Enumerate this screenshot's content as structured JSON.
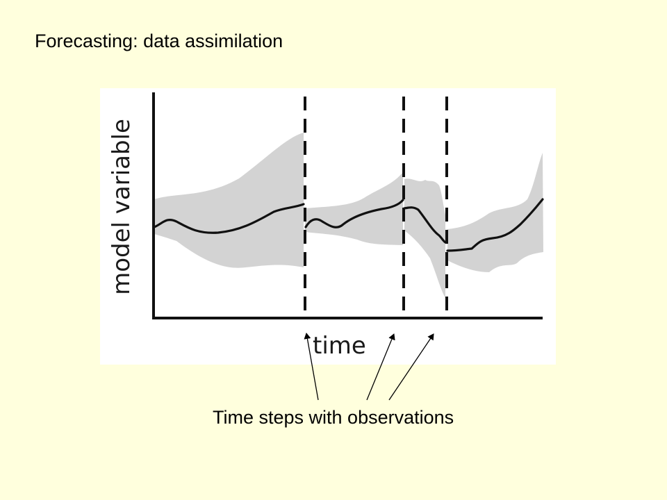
{
  "slide": {
    "title": "Forecasting: data assimilation",
    "caption": "Time steps with observations"
  },
  "figure": {
    "ylabel": "model variable",
    "xlabel": "time"
  },
  "colors": {
    "background": "#ffffdd",
    "uncertainty_band": "#d3d3d3",
    "trajectory": "#111111"
  }
}
